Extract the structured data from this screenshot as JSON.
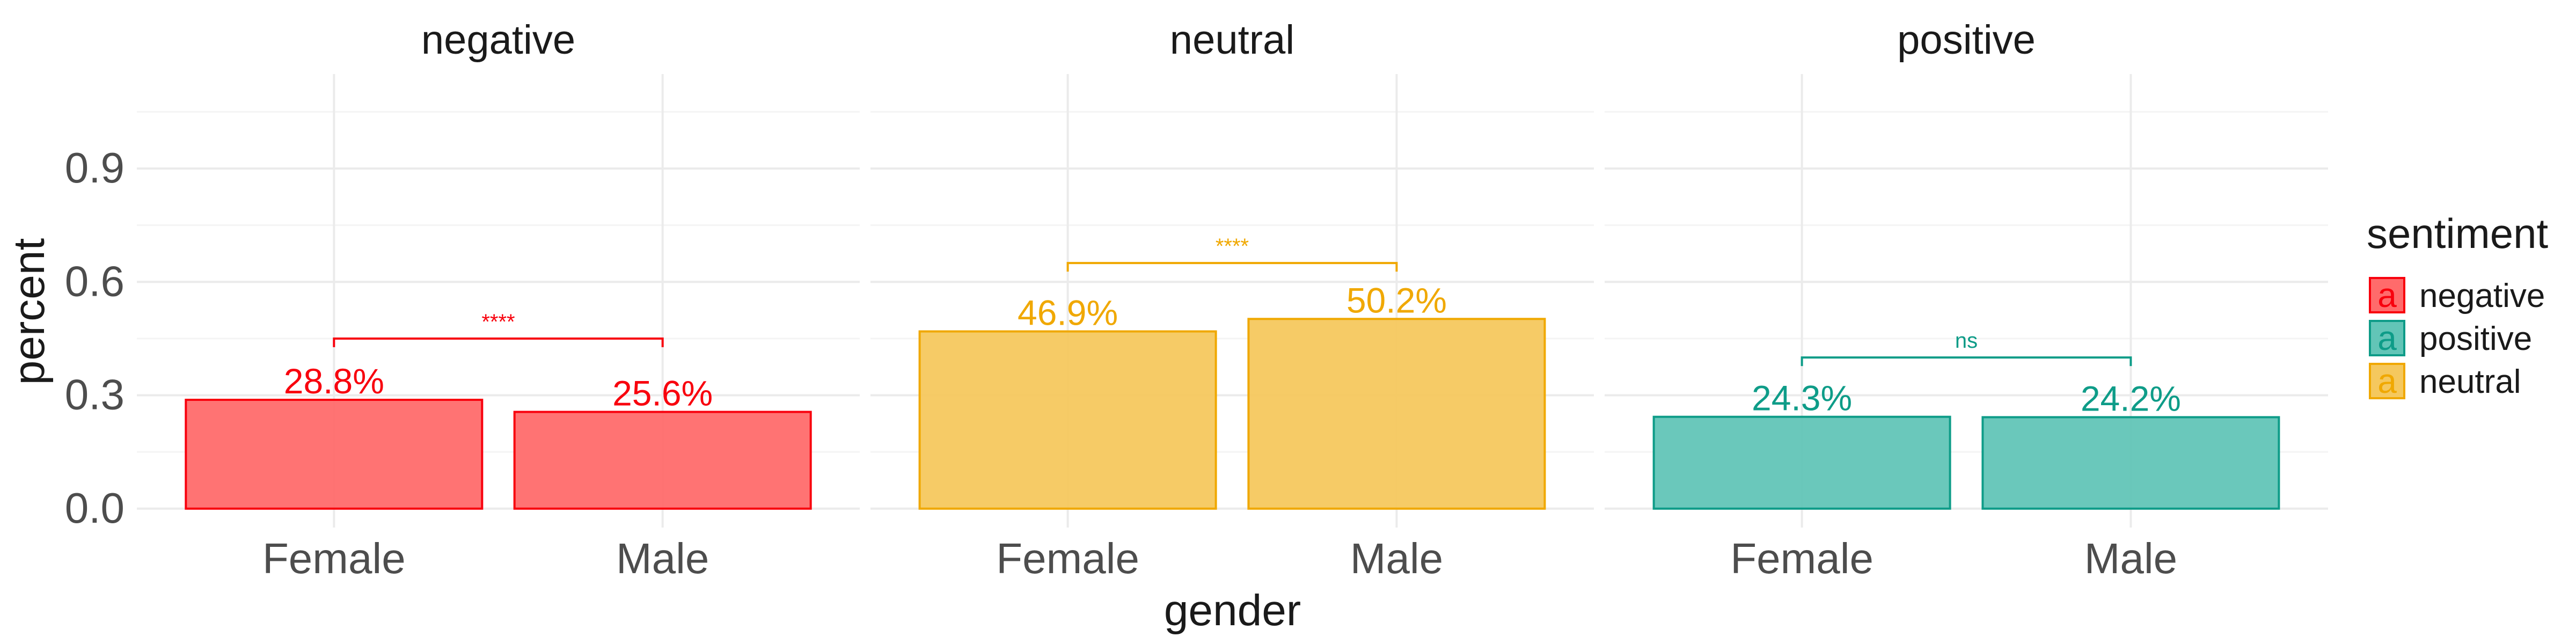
{
  "chart_data": {
    "type": "bar",
    "facets": [
      "negative",
      "neutral",
      "positive"
    ],
    "categories": [
      "Female",
      "Male"
    ],
    "series": [
      {
        "name": "negative",
        "color": "#F8000D",
        "fill": "#FF6B6B",
        "values": [
          0.288,
          0.256
        ],
        "labels": [
          "28.8%",
          "25.6%"
        ]
      },
      {
        "name": "neutral",
        "color": "#F0A800",
        "fill": "#F5C85E",
        "values": [
          0.469,
          0.502
        ],
        "labels": [
          "46.9%",
          "50.2%"
        ]
      },
      {
        "name": "positive",
        "color": "#0E9C88",
        "fill": "#62C5B7",
        "values": [
          0.243,
          0.242
        ],
        "labels": [
          "24.3%",
          "24.2%"
        ]
      }
    ],
    "significance": [
      {
        "facet": "negative",
        "label": "****",
        "y": 0.45
      },
      {
        "facet": "neutral",
        "label": "****",
        "y": 0.65
      },
      {
        "facet": "positive",
        "label": "ns",
        "y": 0.4
      }
    ],
    "xlabel": "gender",
    "ylabel": "percent",
    "yticks": [
      "0.0",
      "0.3",
      "0.6",
      "0.9"
    ],
    "ytick_values": [
      0,
      0.3,
      0.6,
      0.9
    ],
    "ylim": [
      -0.05,
      1.15
    ],
    "legend": {
      "title": "sentiment",
      "position": "right",
      "key_glyph": "a",
      "entries": [
        "negative",
        "positive",
        "neutral"
      ]
    },
    "grid": true
  }
}
